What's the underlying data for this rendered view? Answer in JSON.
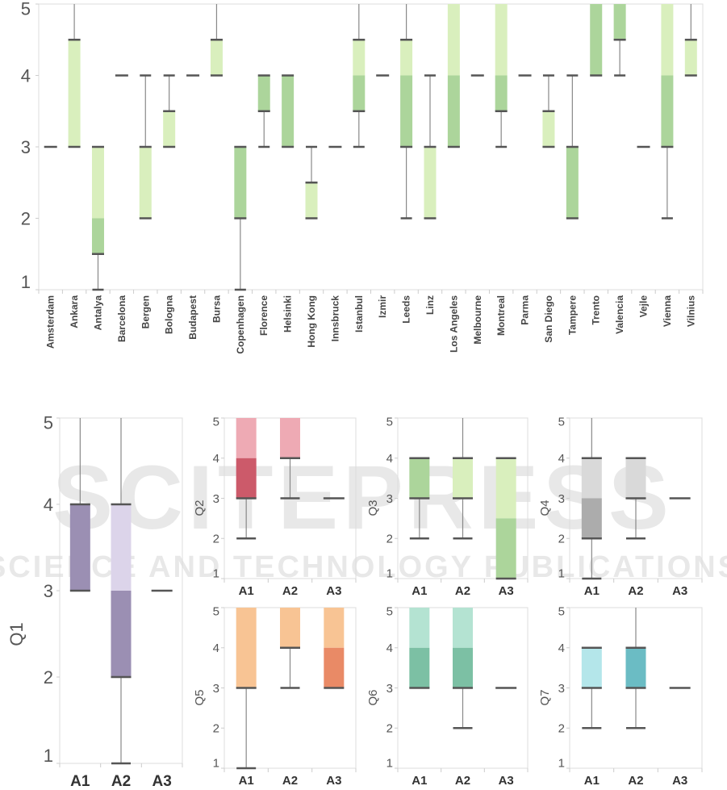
{
  "watermark": {
    "line1": "SCITEPRESS",
    "line2": "SCIENCE AND TECHNOLOGY PUBLICATIONS"
  },
  "chart_data": [
    {
      "id": "cities",
      "type": "boxplot",
      "title": "",
      "xlabel": "",
      "ylabel": "",
      "ylim": [
        1,
        5
      ],
      "yticks": [
        1,
        2,
        3,
        4,
        5
      ],
      "grid": false,
      "colors": {
        "upper": "#d9efbd",
        "lower": "#acd59b"
      },
      "categories": [
        "Amsterdam",
        "Ankara",
        "Antalya",
        "Barcelona",
        "Bergen",
        "Bologna",
        "Budapest",
        "Bursa",
        "Copenhagen",
        "Florence",
        "Helsinki",
        "Hong Kong",
        "Innsbruck",
        "Istanbul",
        "Izmir",
        "Leeds",
        "Linz",
        "Los Angeles",
        "Melbourne",
        "Montreal",
        "Parma",
        "San Diego",
        "Tampere",
        "Trento",
        "Valencia",
        "Vejle",
        "Vienna",
        "Vilnius"
      ],
      "boxes": [
        {
          "min": 3,
          "q1": 3,
          "median": 3,
          "q3": 3,
          "max": 3
        },
        {
          "min": 3,
          "q1": 3,
          "median": 3,
          "q3": 4.5,
          "max": 5
        },
        {
          "min": 1,
          "q1": 1.5,
          "median": 2,
          "q3": 3,
          "max": 3
        },
        {
          "min": 4,
          "q1": 4,
          "median": 4,
          "q3": 4,
          "max": 4
        },
        {
          "min": 2,
          "q1": 2,
          "median": 2,
          "q3": 3,
          "max": 4
        },
        {
          "min": 3,
          "q1": 3,
          "median": 3,
          "q3": 3.5,
          "max": 4
        },
        {
          "min": 4,
          "q1": 4,
          "median": 4,
          "q3": 4,
          "max": 4
        },
        {
          "min": 4,
          "q1": 4,
          "median": 4,
          "q3": 4.5,
          "max": 5
        },
        {
          "min": 1,
          "q1": 2,
          "median": 3,
          "q3": 3,
          "max": 3
        },
        {
          "min": 3,
          "q1": 3.5,
          "median": 4,
          "q3": 4,
          "max": 4
        },
        {
          "min": 3,
          "q1": 3,
          "median": 4,
          "q3": 4,
          "max": 4
        },
        {
          "min": 2,
          "q1": 2,
          "median": 2,
          "q3": 2.5,
          "max": 3
        },
        {
          "min": 3,
          "q1": 3,
          "median": 3,
          "q3": 3,
          "max": 3
        },
        {
          "min": 3,
          "q1": 3.5,
          "median": 4,
          "q3": 4.5,
          "max": 5
        },
        {
          "min": 4,
          "q1": 4,
          "median": 4,
          "q3": 4,
          "max": 4
        },
        {
          "min": 2,
          "q1": 3,
          "median": 4,
          "q3": 4.5,
          "max": 5
        },
        {
          "min": 2,
          "q1": 2,
          "median": 2,
          "q3": 3,
          "max": 4
        },
        {
          "min": 3,
          "q1": 3,
          "median": 4,
          "q3": 5,
          "max": 5
        },
        {
          "min": 4,
          "q1": 4,
          "median": 4,
          "q3": 4,
          "max": 4
        },
        {
          "min": 3,
          "q1": 3.5,
          "median": 4,
          "q3": 5,
          "max": 5
        },
        {
          "min": 4,
          "q1": 4,
          "median": 4,
          "q3": 4,
          "max": 4
        },
        {
          "min": 3,
          "q1": 3,
          "median": 3,
          "q3": 3.5,
          "max": 4
        },
        {
          "min": 2,
          "q1": 2,
          "median": 3,
          "q3": 3,
          "max": 4
        },
        {
          "min": 4,
          "q1": 4,
          "median": 5,
          "q3": 5,
          "max": 5
        },
        {
          "min": 4,
          "q1": 4.5,
          "median": 5,
          "q3": 5,
          "max": 5
        },
        {
          "min": 3,
          "q1": 3,
          "median": 3,
          "q3": 3,
          "max": 3
        },
        {
          "min": 2,
          "q1": 3,
          "median": 4,
          "q3": 5,
          "max": 5
        },
        {
          "min": 4,
          "q1": 4,
          "median": 4,
          "q3": 4.5,
          "max": 5
        }
      ]
    },
    {
      "id": "Q1",
      "type": "boxplot",
      "ylabel": "Q1",
      "ylim": [
        1,
        5
      ],
      "yticks": [
        1,
        2,
        3,
        4,
        5
      ],
      "categories": [
        "A1",
        "A2",
        "A3"
      ],
      "colors": {
        "upper": "#dcd4ea",
        "lower": "#9b8fb3"
      },
      "boxes": [
        {
          "min": 3,
          "q1": 3,
          "median": 4,
          "q3": 4,
          "max": 5
        },
        {
          "min": 1,
          "q1": 2,
          "median": 3,
          "q3": 4,
          "max": 5
        },
        {
          "min": 3,
          "q1": 3,
          "median": 3,
          "q3": 3,
          "max": 3
        }
      ]
    },
    {
      "id": "Q2",
      "type": "boxplot",
      "ylabel": "Q2",
      "ylim": [
        1,
        5
      ],
      "yticks": [
        1,
        2,
        3,
        4,
        5
      ],
      "categories": [
        "A1",
        "A2",
        "A3"
      ],
      "colors": {
        "upper": "#eeaab4",
        "lower": "#cc5a6a"
      },
      "boxes": [
        {
          "min": 2,
          "q1": 3,
          "median": 4,
          "q3": 5,
          "max": 5
        },
        {
          "min": 3,
          "q1": 4,
          "median": 4,
          "q3": 5,
          "max": 5
        },
        {
          "min": 3,
          "q1": 3,
          "median": 3,
          "q3": 3,
          "max": 3
        }
      ]
    },
    {
      "id": "Q3",
      "type": "boxplot",
      "ylabel": "Q3",
      "ylim": [
        1,
        5
      ],
      "yticks": [
        1,
        2,
        3,
        4,
        5
      ],
      "categories": [
        "A1",
        "A2",
        "A3"
      ],
      "colors": {
        "upper": "#d9efbd",
        "lower": "#acd59b"
      },
      "boxes": [
        {
          "min": 2,
          "q1": 3,
          "median": 4,
          "q3": 4,
          "max": 4
        },
        {
          "min": 2,
          "q1": 3,
          "median": 3,
          "q3": 4,
          "max": 5
        },
        {
          "min": 1,
          "q1": 1,
          "median": 2.5,
          "q3": 4,
          "max": 4
        }
      ]
    },
    {
      "id": "Q4",
      "type": "boxplot",
      "ylabel": "Q4",
      "ylim": [
        1,
        5
      ],
      "yticks": [
        1,
        2,
        3,
        4,
        5
      ],
      "categories": [
        "A1",
        "A2",
        "A3"
      ],
      "colors": {
        "upper": "#d9d9d9",
        "lower": "#acacac"
      },
      "boxes": [
        {
          "min": 1,
          "q1": 2,
          "median": 3,
          "q3": 4,
          "max": 5
        },
        {
          "min": 2,
          "q1": 3,
          "median": 3,
          "q3": 4,
          "max": 4
        },
        {
          "min": 3,
          "q1": 3,
          "median": 3,
          "q3": 3,
          "max": 3
        }
      ]
    },
    {
      "id": "Q5",
      "type": "boxplot",
      "ylabel": "Q5",
      "ylim": [
        1,
        5
      ],
      "yticks": [
        1,
        2,
        3,
        4,
        5
      ],
      "categories": [
        "A1",
        "A2",
        "A3"
      ],
      "colors": {
        "upper": "#f8c494",
        "lower": "#e98a66"
      },
      "boxes": [
        {
          "min": 1,
          "q1": 3,
          "median": 3,
          "q3": 5,
          "max": 5
        },
        {
          "min": 3,
          "q1": 4,
          "median": 4,
          "q3": 5,
          "max": 5
        },
        {
          "min": 3,
          "q1": 3,
          "median": 4,
          "q3": 5,
          "max": 5
        }
      ]
    },
    {
      "id": "Q6",
      "type": "boxplot",
      "ylabel": "Q6",
      "ylim": [
        1,
        5
      ],
      "yticks": [
        1,
        2,
        3,
        4,
        5
      ],
      "categories": [
        "A1",
        "A2",
        "A3"
      ],
      "colors": {
        "upper": "#b4e3d2",
        "lower": "#7cc0a4"
      },
      "boxes": [
        {
          "min": 3,
          "q1": 3,
          "median": 4,
          "q3": 5,
          "max": 5
        },
        {
          "min": 2,
          "q1": 3,
          "median": 4,
          "q3": 5,
          "max": 5
        },
        {
          "min": 3,
          "q1": 3,
          "median": 3,
          "q3": 3,
          "max": 3
        }
      ]
    },
    {
      "id": "Q7",
      "type": "boxplot",
      "ylabel": "Q7",
      "ylim": [
        1,
        5
      ],
      "yticks": [
        1,
        2,
        3,
        4,
        5
      ],
      "categories": [
        "A1",
        "A2",
        "A3"
      ],
      "colors": {
        "upper": "#b4e6ea",
        "lower": "#6bbcc4"
      },
      "boxes": [
        {
          "min": 2,
          "q1": 3,
          "median": 3,
          "q3": 4,
          "max": 4
        },
        {
          "min": 2,
          "q1": 3,
          "median": 4,
          "q3": 4,
          "max": 5
        },
        {
          "min": 3,
          "q1": 3,
          "median": 3,
          "q3": 3,
          "max": 3
        }
      ]
    }
  ]
}
